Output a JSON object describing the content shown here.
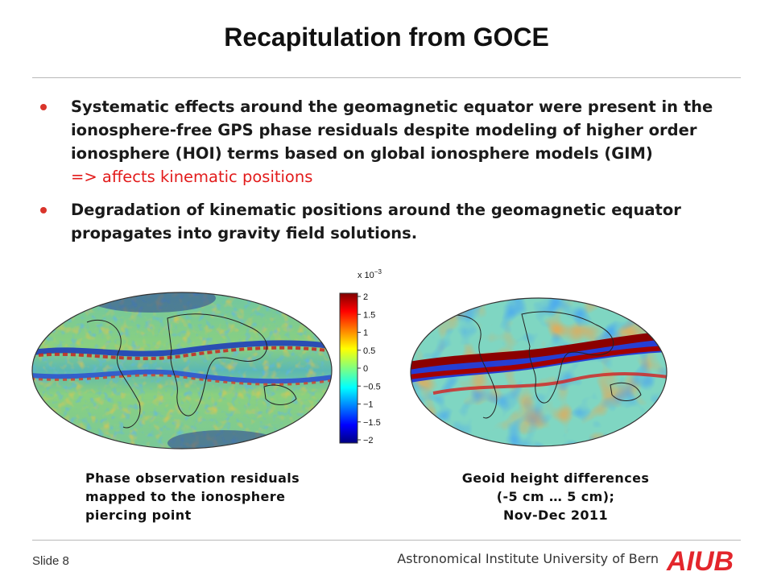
{
  "slide": {
    "title": "Recapitulation from GOCE",
    "bullets": [
      {
        "lines": [
          "Systematic effects around the geomagnetic equator were present in the",
          "ionosphere-free GPS phase residuals despite modeling of higher order",
          "ionosphere (HOI) terms based on global ionosphere models (GIM)"
        ],
        "highlight": "=> affects kinematic positions"
      },
      {
        "lines": [
          "Degradation of kinematic positions around the geomagnetic equator",
          "propagates into gravity field solutions."
        ]
      }
    ]
  },
  "colorbar": {
    "exponent": "x 10",
    "exponent_power": "−3",
    "ticks": [
      "2",
      "1.5",
      "1",
      "0.5",
      "0",
      "−0.5",
      "−1",
      "−1.5",
      "−2"
    ]
  },
  "captions": {
    "left": [
      "Phase observation residuals",
      "mapped to the ionosphere",
      "piercing point"
    ],
    "right": [
      "Geoid height differences",
      "(-5 cm … 5 cm);",
      "Nov-Dec 2011"
    ]
  },
  "footer": {
    "slide_label": "Slide 8",
    "institute": "Astronomical Institute University of Bern",
    "logo_text": "AIUB"
  },
  "colors": {
    "bullet_dot": "#d9342b",
    "highlight": "#e21b1b",
    "logo": "#e3262c"
  }
}
